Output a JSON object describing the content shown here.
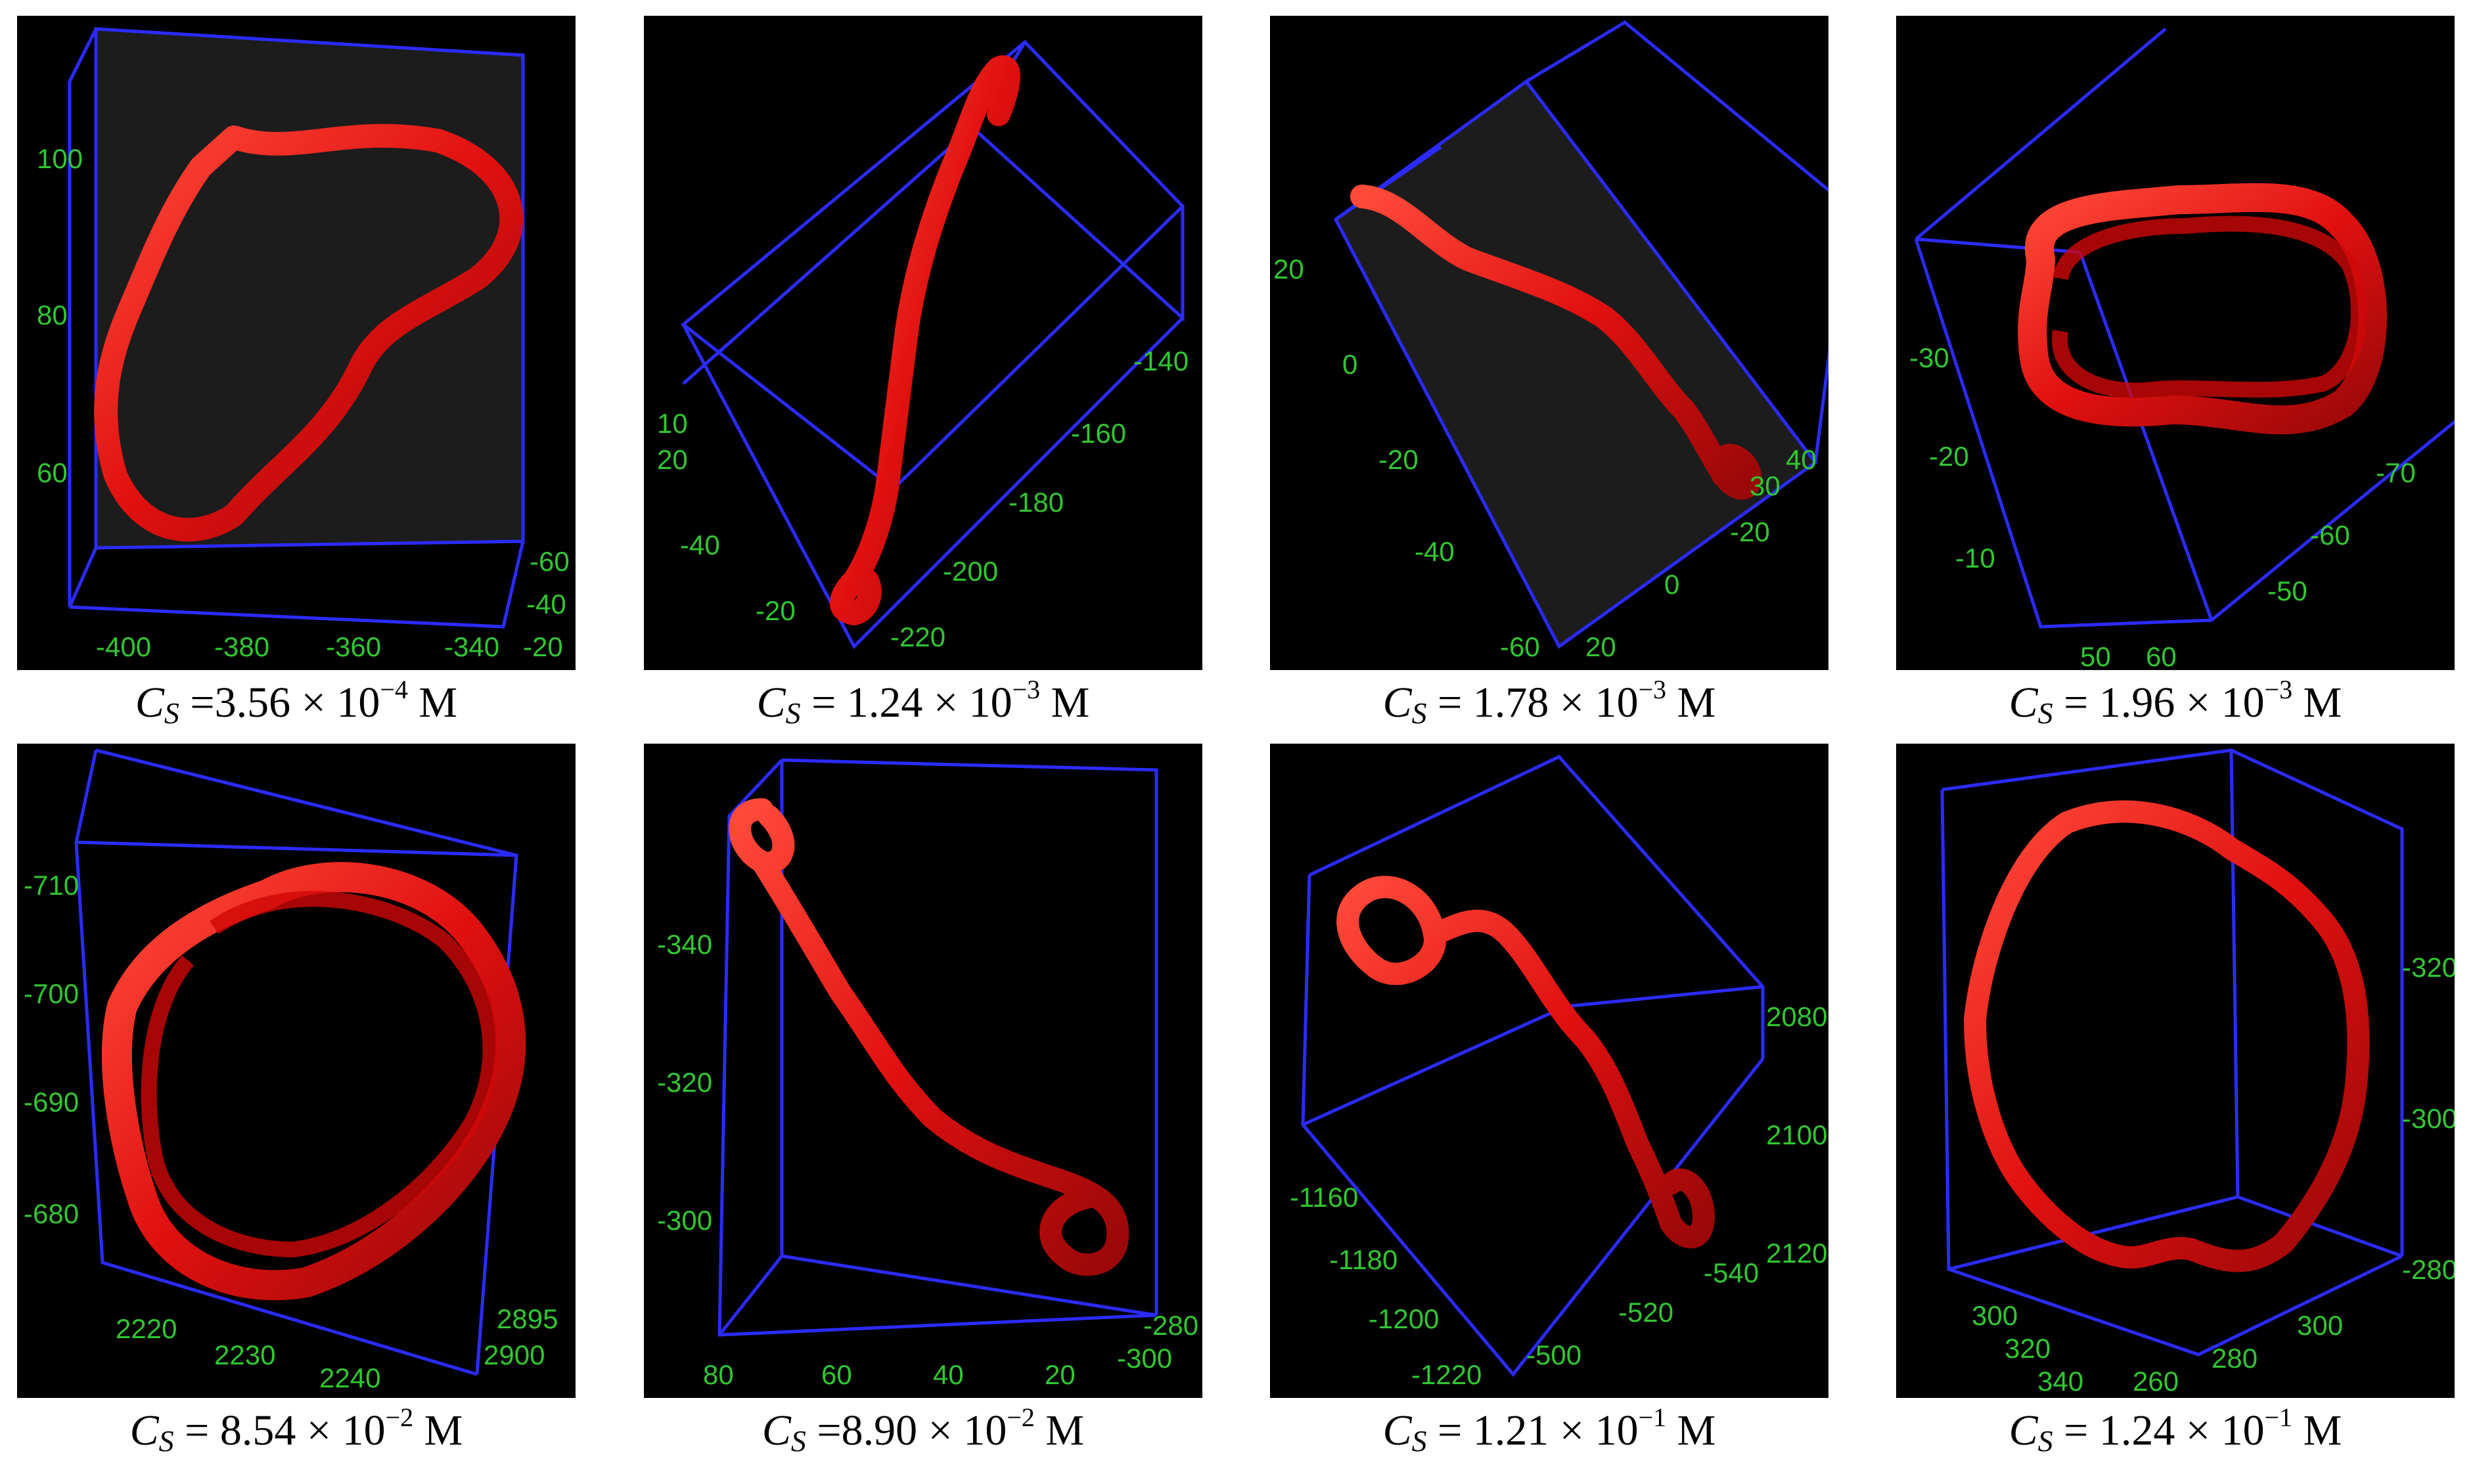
{
  "colors": {
    "box_edge": "#2b2bff",
    "tick_label": "#32c632",
    "ring": "#e01010",
    "panel_bg": "#000000"
  },
  "panels": [
    {
      "caption": {
        "symbol": "C",
        "sub": "S",
        "eq": "=3.56 × 10",
        "exp": "−4",
        "unit": "M"
      },
      "ticks": [
        "100",
        "80",
        "60",
        "-400",
        "-380",
        "-360",
        "-340",
        "-60",
        "-40",
        "-20"
      ]
    },
    {
      "caption": {
        "symbol": "C",
        "sub": "S",
        "eq": "= 1.24 × 10",
        "exp": "−3",
        "unit": "M"
      },
      "ticks": [
        "10",
        "20",
        "-40",
        "-20",
        "-140",
        "-160",
        "-180",
        "-200",
        "-220"
      ]
    },
    {
      "caption": {
        "symbol": "C",
        "sub": "S",
        "eq": "= 1.78 × 10",
        "exp": "−3",
        "unit": "M"
      },
      "ticks": [
        "20",
        "0",
        "-20",
        "-40",
        "-60",
        "20",
        "0",
        "-20",
        "30",
        "40"
      ]
    },
    {
      "caption": {
        "symbol": "C",
        "sub": "S",
        "eq": "= 1.96 × 10",
        "exp": "−3",
        "unit": "M"
      },
      "ticks": [
        "-30",
        "-20",
        "-10",
        "50",
        "60",
        "-50",
        "-60",
        "-70"
      ]
    },
    {
      "caption": {
        "symbol": "C",
        "sub": "S",
        "eq": "= 8.54 × 10",
        "exp": "−2",
        "unit": "M"
      },
      "ticks": [
        "-710",
        "-700",
        "-690",
        "-680",
        "2220",
        "2230",
        "2240",
        "2895",
        "2900"
      ]
    },
    {
      "caption": {
        "symbol": "C",
        "sub": "S",
        "eq": "=8.90 × 10",
        "exp": "−2",
        "unit": "M"
      },
      "ticks": [
        "-340",
        "-320",
        "-300",
        "80",
        "60",
        "40",
        "20",
        "-280",
        "-300"
      ]
    },
    {
      "caption": {
        "symbol": "C",
        "sub": "S",
        "eq": "= 1.21 × 10",
        "exp": "−1",
        "unit": "M"
      },
      "ticks": [
        "-1160",
        "-1180",
        "-1200",
        "-1220",
        "-500",
        "-520",
        "-540",
        "2080",
        "2100",
        "2120"
      ]
    },
    {
      "caption": {
        "symbol": "C",
        "sub": "S",
        "eq": "= 1.24 × 10",
        "exp": "−1",
        "unit": "M"
      },
      "ticks": [
        "300",
        "320",
        "340",
        "260",
        "280",
        "300",
        "-320",
        "-300",
        "-280"
      ]
    }
  ]
}
